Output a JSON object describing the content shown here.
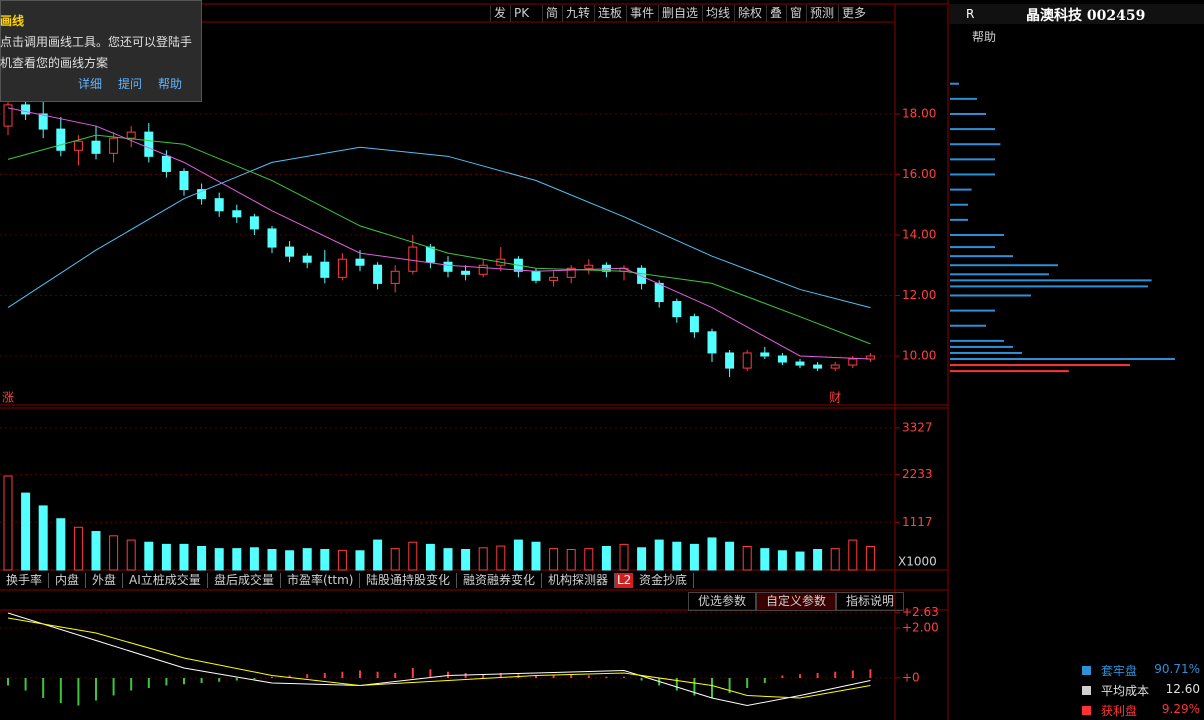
{
  "toolbar": [
    "发",
    "PK",
    "简",
    "九转",
    "连板",
    "事件",
    "删自选",
    "均线",
    "除权",
    "叠",
    "窗",
    "预测",
    "更多"
  ],
  "tooltip": {
    "title": "画线",
    "lines": [
      "点击调用画线工具。您还可以登陆手",
      "机查看您的画线方案"
    ],
    "links": [
      "详细",
      "提问",
      "帮助"
    ]
  },
  "chart_data": [
    {
      "type": "candlestick",
      "up_color": "#ff3c3c",
      "down_color": "#54ffff",
      "ylim": [
        8.38,
        21.04
      ],
      "yticks": [
        {
          "value": 10,
          "label": "10.00"
        },
        {
          "value": 12,
          "label": "12.00"
        },
        {
          "value": 14,
          "label": "14.00"
        },
        {
          "value": 16,
          "label": "16.00"
        },
        {
          "value": 18,
          "label": "18.00"
        }
      ],
      "grid": true,
      "annotations": [
        {
          "text": "涨",
          "index": 0
        },
        {
          "text": "财",
          "index": 47
        }
      ],
      "ohlc": [
        [
          17.6,
          18.6,
          17.3,
          18.3
        ],
        [
          18.3,
          18.5,
          17.8,
          18.0
        ],
        [
          18.0,
          18.4,
          17.2,
          17.5
        ],
        [
          17.5,
          17.9,
          16.6,
          16.8
        ],
        [
          16.8,
          17.3,
          16.3,
          17.1
        ],
        [
          17.1,
          17.6,
          16.5,
          16.7
        ],
        [
          16.7,
          17.4,
          16.4,
          17.2
        ],
        [
          17.2,
          17.6,
          16.9,
          17.4
        ],
        [
          17.4,
          17.7,
          16.4,
          16.6
        ],
        [
          16.6,
          16.8,
          15.9,
          16.1
        ],
        [
          16.1,
          16.2,
          15.3,
          15.5
        ],
        [
          15.5,
          15.7,
          15.0,
          15.2
        ],
        [
          15.2,
          15.4,
          14.6,
          14.8
        ],
        [
          14.8,
          15.0,
          14.4,
          14.6
        ],
        [
          14.6,
          14.7,
          14.0,
          14.2
        ],
        [
          14.2,
          14.3,
          13.4,
          13.6
        ],
        [
          13.6,
          13.8,
          13.1,
          13.3
        ],
        [
          13.3,
          13.4,
          12.9,
          13.1
        ],
        [
          13.1,
          13.5,
          12.4,
          12.6
        ],
        [
          12.6,
          13.4,
          12.5,
          13.2
        ],
        [
          13.2,
          13.5,
          12.8,
          13.0
        ],
        [
          13.0,
          13.1,
          12.2,
          12.4
        ],
        [
          12.4,
          13.0,
          12.1,
          12.8
        ],
        [
          12.8,
          14.0,
          12.7,
          13.6
        ],
        [
          13.6,
          13.7,
          12.9,
          13.1
        ],
        [
          13.1,
          13.3,
          12.6,
          12.8
        ],
        [
          12.8,
          13.0,
          12.5,
          12.7
        ],
        [
          12.7,
          13.2,
          12.6,
          13.0
        ],
        [
          13.0,
          13.6,
          12.8,
          13.2
        ],
        [
          13.2,
          13.3,
          12.6,
          12.8
        ],
        [
          12.8,
          12.9,
          12.4,
          12.5
        ],
        [
          12.5,
          12.8,
          12.3,
          12.6
        ],
        [
          12.6,
          13.0,
          12.4,
          12.9
        ],
        [
          12.9,
          13.2,
          12.7,
          13.0
        ],
        [
          13.0,
          13.1,
          12.6,
          12.8
        ],
        [
          12.8,
          13.0,
          12.5,
          12.9
        ],
        [
          12.9,
          13.0,
          12.2,
          12.4
        ],
        [
          12.4,
          12.5,
          11.6,
          11.8
        ],
        [
          11.8,
          11.9,
          11.1,
          11.3
        ],
        [
          11.3,
          11.4,
          10.6,
          10.8
        ],
        [
          10.8,
          10.9,
          9.8,
          10.1
        ],
        [
          10.1,
          10.2,
          9.3,
          9.6
        ],
        [
          9.6,
          10.2,
          9.5,
          10.1
        ],
        [
          10.1,
          10.3,
          9.9,
          10.0
        ],
        [
          10.0,
          10.1,
          9.7,
          9.8
        ],
        [
          9.8,
          9.9,
          9.6,
          9.7
        ],
        [
          9.7,
          9.8,
          9.5,
          9.6
        ],
        [
          9.6,
          9.8,
          9.5,
          9.7
        ],
        [
          9.7,
          10.0,
          9.6,
          9.9
        ],
        [
          9.9,
          10.1,
          9.8,
          10.0
        ]
      ],
      "lines": [
        {
          "color": "#4fc3f7",
          "x": [
            0,
            5,
            10,
            15,
            20,
            25,
            30,
            35,
            40,
            45,
            49
          ],
          "values": [
            11.6,
            13.5,
            15.2,
            16.4,
            16.9,
            16.6,
            15.8,
            14.6,
            13.3,
            12.2,
            11.6
          ]
        },
        {
          "color": "#3cc83c",
          "x": [
            0,
            5,
            10,
            15,
            20,
            25,
            30,
            35,
            40,
            45,
            49
          ],
          "values": [
            16.5,
            17.3,
            17.0,
            15.8,
            14.3,
            13.4,
            12.9,
            12.8,
            12.4,
            11.3,
            10.4
          ]
        },
        {
          "color": "#e060e0",
          "x": [
            0,
            5,
            10,
            15,
            20,
            25,
            30,
            35,
            40,
            45,
            49
          ],
          "values": [
            18.2,
            17.6,
            16.4,
            14.8,
            13.4,
            13.0,
            12.8,
            12.9,
            11.6,
            10.0,
            9.9
          ]
        }
      ]
    },
    {
      "type": "bar",
      "unit": "X1000",
      "up_color": "#ff3c3c",
      "down_color": "#54ffff",
      "ylim": [
        0,
        3792
      ],
      "yticks": [
        1117,
        2233,
        3327
      ],
      "grid": true,
      "values": [
        2200,
        1800,
        1500,
        1200,
        1000,
        900,
        800,
        700,
        650,
        600,
        600,
        550,
        500,
        500,
        520,
        480,
        450,
        500,
        480,
        460,
        450,
        700,
        500,
        650,
        600,
        500,
        480,
        520,
        560,
        700,
        650,
        500,
        480,
        500,
        550,
        600,
        520,
        700,
        650,
        600,
        750,
        650,
        550,
        500,
        450,
        420,
        480,
        500,
        700,
        550
      ]
    },
    {
      "type": "bar",
      "up_color": "#ff3c3c",
      "down_color": "#3cc83c",
      "ylim": [
        -1.48,
        2.64
      ],
      "yticks": [
        {
          "value": 0,
          "label": "+0"
        },
        {
          "value": 2,
          "label": "+2.00"
        },
        {
          "value": 2.63,
          "label": "+2.63"
        }
      ],
      "grid": true,
      "values": [
        -0.3,
        -0.5,
        -0.8,
        -1.0,
        -1.1,
        -0.9,
        -0.7,
        -0.5,
        -0.4,
        -0.3,
        -0.25,
        -0.2,
        -0.15,
        -0.1,
        -0.05,
        0.05,
        0.1,
        0.15,
        0.2,
        0.25,
        0.3,
        0.25,
        0.2,
        0.4,
        0.35,
        0.25,
        0.2,
        0.15,
        0.2,
        0.15,
        0.1,
        0.1,
        0.15,
        0.1,
        0.05,
        0.05,
        -0.1,
        -0.3,
        -0.5,
        -0.7,
        -0.8,
        -0.6,
        -0.4,
        -0.2,
        0.1,
        0.15,
        0.2,
        0.25,
        0.3,
        0.35
      ],
      "lines": [
        {
          "color": "#ffffff",
          "x": [
            0,
            5,
            10,
            15,
            20,
            25,
            30,
            35,
            40,
            42,
            45,
            49
          ],
          "values": [
            2.6,
            1.5,
            0.4,
            -0.2,
            -0.3,
            0.1,
            0.2,
            0.3,
            -0.8,
            -1.1,
            -0.7,
            -0.1
          ]
        },
        {
          "color": "#ffff00",
          "x": [
            0,
            5,
            10,
            15,
            20,
            25,
            30,
            35,
            40,
            42,
            45,
            49
          ],
          "values": [
            2.4,
            1.8,
            0.8,
            0.1,
            -0.3,
            -0.1,
            0.1,
            0.2,
            -0.3,
            -0.7,
            -0.8,
            -0.3
          ]
        }
      ]
    },
    {
      "type": "chips",
      "prices": [
        9.5,
        9.7,
        9.9,
        10.1,
        10.3,
        10.5,
        11,
        11.5,
        12,
        12.3,
        12.5,
        12.7,
        13,
        13.3,
        13.6,
        14,
        14.5,
        15,
        15.5,
        16,
        16.5,
        17,
        17.5,
        18,
        18.5,
        19
      ],
      "values": [
        66,
        100,
        125,
        40,
        35,
        30,
        20,
        25,
        45,
        110,
        112,
        55,
        60,
        35,
        25,
        30,
        10,
        10,
        12,
        25,
        25,
        28,
        25,
        20,
        15,
        5
      ],
      "colors": [
        "#ff3333",
        "#ff3333",
        "#2f8fd8",
        "#2f8fd8",
        "#2f8fd8",
        "#2f8fd8",
        "#2f8fd8",
        "#2f8fd8",
        "#2f8fd8",
        "#2f8fd8",
        "#2f8fd8",
        "#2f8fd8",
        "#2f8fd8",
        "#2f8fd8",
        "#2f8fd8",
        "#2f8fd8",
        "#2f8fd8",
        "#2f8fd8",
        "#2f8fd8",
        "#2f8fd8",
        "#2f8fd8",
        "#2f8fd8",
        "#2f8fd8",
        "#2f8fd8",
        "#2f8fd8",
        "#2f8fd8"
      ]
    }
  ],
  "tabs": [
    "换手率",
    "内盘",
    "外盘",
    "AI立桩成交量",
    "盘后成交量",
    "市盈率(ttm)",
    "陆股通持股变化",
    "融资融券变化",
    "机构探测器",
    "L2",
    "资金抄底"
  ],
  "param_buttons": [
    "优选参数",
    "自定义参数",
    "指标说明"
  ],
  "side": {
    "mode": "R",
    "stock": "晶澳科技 002459",
    "help": "帮助",
    "stats": [
      {
        "label": "套牢盘",
        "value": 90.71,
        "value_label": "90.71%",
        "color": "#2f8fd8"
      },
      {
        "label": "平均成本",
        "value": 12.6,
        "value_label": "12.60",
        "color": "#d0d0d0"
      },
      {
        "label": "获利盘",
        "value": 9.29,
        "value_label": "9.29%",
        "color": "#ff3333"
      }
    ]
  }
}
